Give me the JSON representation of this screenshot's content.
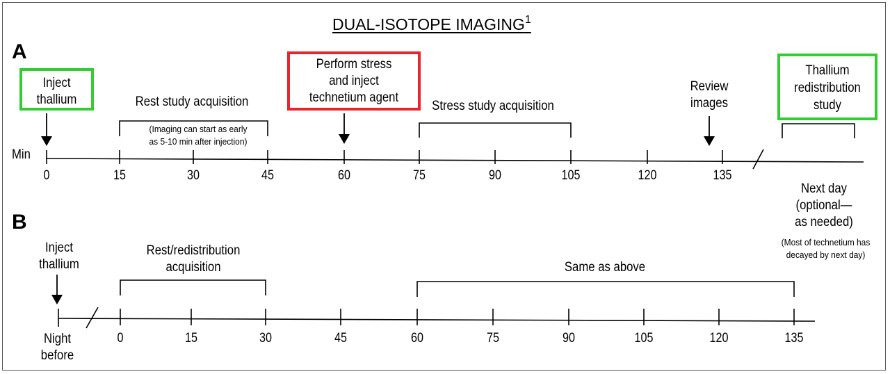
{
  "title": "DUAL-ISOTOPE IMAGING",
  "title_superscript": "1",
  "colors": {
    "green_box": "#33cc33",
    "red_box": "#e8242c",
    "line": "#000000"
  },
  "panel_a": {
    "label": "A",
    "axis_label": "Min",
    "ticks": [
      "0",
      "15",
      "30",
      "45",
      "60",
      "75",
      "90",
      "105",
      "120",
      "135"
    ],
    "inject_thallium": [
      "Inject",
      "thallium"
    ],
    "rest_study": "Rest study acquisition",
    "rest_note": [
      "(Imaging can start  as early",
      "as 5-10 min after injection)"
    ],
    "perform_stress": [
      "Perform stress",
      "and inject",
      "technetium agent"
    ],
    "stress_study": "Stress study acquisition",
    "review_images": [
      "Review",
      "images"
    ],
    "thallium_redistribution": [
      "Thallium",
      "redistribution",
      "study"
    ],
    "next_day": [
      "Next day",
      "(optional—",
      "as needed)"
    ],
    "next_day_note": [
      "(Most of technetium  has",
      "decayed by next day)"
    ]
  },
  "panel_b": {
    "label": "B",
    "inject_thallium": [
      "Inject",
      "thallium"
    ],
    "rest_redistribution": [
      "Rest/redistribution",
      "acquisition"
    ],
    "same_as_above": "Same as above",
    "night_before": [
      "Night",
      "before"
    ],
    "ticks": [
      "0",
      "15",
      "30",
      "45",
      "60",
      "75",
      "90",
      "105",
      "120",
      "135"
    ]
  }
}
